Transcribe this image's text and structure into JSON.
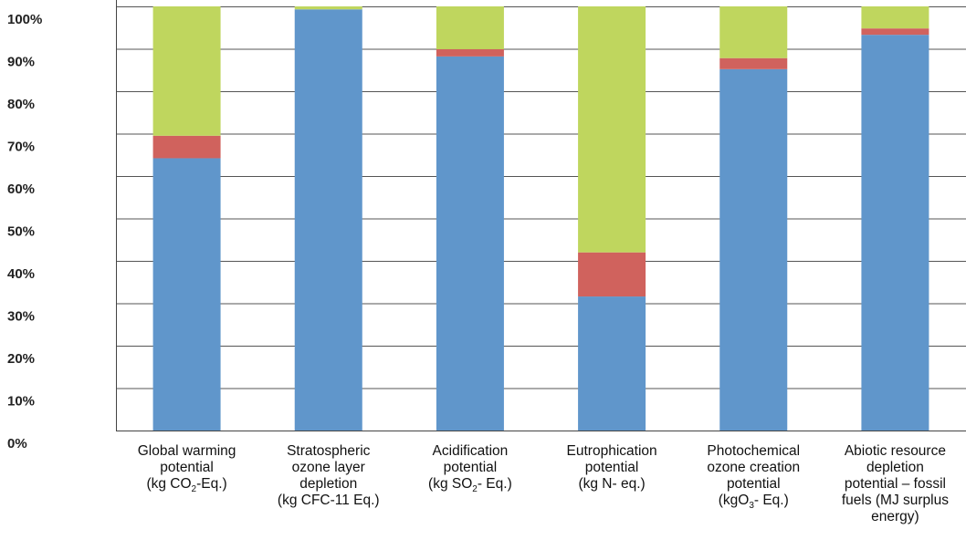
{
  "chart_data": {
    "type": "bar",
    "stacked": true,
    "normalized": true,
    "title": "",
    "xlabel": "",
    "ylabel": "",
    "ylim": [
      0,
      100
    ],
    "y_ticks": [
      "0%",
      "10%",
      "20%",
      "30%",
      "40%",
      "50%",
      "60%",
      "70%",
      "80%",
      "90%",
      "100%"
    ],
    "grid": "horizontal",
    "legend": "none",
    "categories": [
      {
        "lines": [
          [
            "Global warming",
            ""
          ],
          [
            "potential",
            ""
          ],
          [
            "(kg CO",
            "2",
            "-Eq.)"
          ]
        ]
      },
      {
        "lines": [
          [
            "Stratospheric",
            ""
          ],
          [
            "ozone layer",
            ""
          ],
          [
            "depletion",
            ""
          ],
          [
            "(kg CFC-11 Eq.)",
            ""
          ]
        ]
      },
      {
        "lines": [
          [
            "Acidification",
            ""
          ],
          [
            "potential",
            ""
          ],
          [
            "(kg SO",
            "2",
            "- Eq.)"
          ]
        ]
      },
      {
        "lines": [
          [
            "Eutrophication",
            ""
          ],
          [
            "potential",
            ""
          ],
          [
            "(kg N- eq.)",
            ""
          ]
        ]
      },
      {
        "lines": [
          [
            "Photochemical",
            ""
          ],
          [
            "ozone creation",
            ""
          ],
          [
            "potential",
            ""
          ],
          [
            "(kgO",
            "3",
            "- Eq.)"
          ]
        ]
      },
      {
        "lines": [
          [
            "Abiotic resource",
            ""
          ],
          [
            "depletion",
            ""
          ],
          [
            "potential – fossil",
            ""
          ],
          [
            "fuels (MJ surplus",
            ""
          ],
          [
            "energy)",
            ""
          ]
        ]
      }
    ],
    "series": [
      {
        "color": "#6096cb",
        "values": [
          64.2,
          99.3,
          88.2,
          31.6,
          85.2,
          93.3
        ]
      },
      {
        "color": "#d0625d",
        "values": [
          5.3,
          0.0,
          1.7,
          10.4,
          2.6,
          1.5
        ]
      },
      {
        "color": "#bfd65e",
        "values": [
          30.5,
          0.7,
          10.1,
          58.0,
          12.2,
          5.2
        ]
      }
    ]
  }
}
